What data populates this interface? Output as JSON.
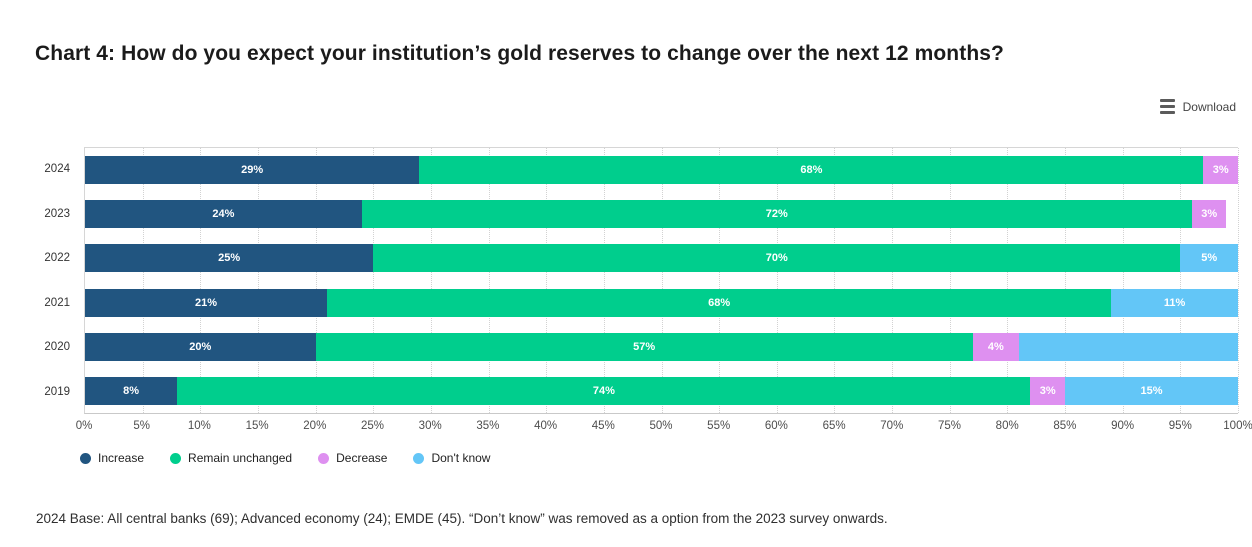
{
  "title": "Chart 4: How do you expect your institution’s gold reserves to change over the next 12 months?",
  "download": {
    "label": "Download",
    "icon": "hamburger-menu-icon"
  },
  "footer_note": "2024 Base: All central banks (69); Advanced economy (24); EMDE (45). “Don’t know” was removed as a option from the 2023 survey onwards.",
  "chart_data": {
    "type": "bar",
    "orientation": "horizontal-stacked",
    "title": "Chart 4: How do you expect your institution’s gold reserves to change over the next 12 months?",
    "categories": [
      "2024",
      "2023",
      "2022",
      "2021",
      "2020",
      "2019"
    ],
    "series": [
      {
        "name": "Increase",
        "color": "#215580",
        "values": [
          29,
          24,
          25,
          21,
          20,
          8
        ],
        "labels": [
          "29%",
          "24%",
          "25%",
          "21%",
          "20%",
          "8%"
        ]
      },
      {
        "name": "Remain unchanged",
        "color": "#00CE8D",
        "values": [
          68,
          72,
          70,
          68,
          57,
          74
        ],
        "labels": [
          "68%",
          "72%",
          "70%",
          "68%",
          "57%",
          "74%"
        ]
      },
      {
        "name": "Decrease",
        "color": "#DE90F0",
        "values": [
          3,
          3,
          0,
          0,
          4,
          3
        ],
        "labels": [
          "3%",
          "3%",
          "",
          "",
          "4%",
          "3%"
        ]
      },
      {
        "name": "Don't know",
        "color": "#63C6F7",
        "values": [
          0,
          0,
          5,
          11,
          19,
          15
        ],
        "labels": [
          "",
          "",
          "5%",
          "11%",
          "",
          "15%"
        ]
      }
    ],
    "xlabel": "",
    "ylabel": "",
    "xlim": [
      0,
      100
    ],
    "x_ticks": [
      "0%",
      "5%",
      "10%",
      "15%",
      "20%",
      "25%",
      "30%",
      "35%",
      "40%",
      "45%",
      "50%",
      "55%",
      "60%",
      "65%",
      "70%",
      "75%",
      "80%",
      "85%",
      "90%",
      "95%",
      "100%"
    ],
    "grid": "vertical-dotted",
    "legend_position": "bottom-left",
    "bar_label_color": "#ffffff"
  }
}
